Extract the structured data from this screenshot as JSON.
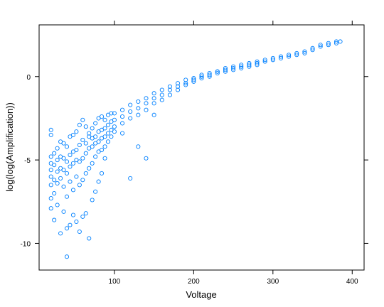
{
  "chart_data": {
    "type": "scatter",
    "title": "",
    "xlabel": "Voltage",
    "ylabel": "log(log(Amplification))",
    "xlim": [
      5,
      415
    ],
    "ylim": [
      -11.6,
      3.1
    ],
    "x_ticks": [
      {
        "value": 100,
        "label": "100"
      },
      {
        "value": 200,
        "label": "200"
      },
      {
        "value": 300,
        "label": "300"
      },
      {
        "value": 400,
        "label": "400"
      }
    ],
    "y_ticks": [
      {
        "value": 0,
        "label": "0"
      },
      {
        "value": -5,
        "label": "-5"
      },
      {
        "value": -10,
        "label": "-10"
      }
    ],
    "grid": false,
    "legend": "none",
    "marker_color": "#0080ff",
    "series": [
      {
        "values": [
          [
            20,
            -3.2
          ],
          [
            20,
            -3.5
          ],
          [
            20,
            -4.8
          ],
          [
            20,
            -5.2
          ],
          [
            20,
            -5.6
          ],
          [
            20,
            -6.0
          ],
          [
            20,
            -6.5
          ],
          [
            20,
            -7.3
          ],
          [
            20,
            -7.9
          ],
          [
            24,
            -4.6
          ],
          [
            24,
            -5.3
          ],
          [
            24,
            -6.2
          ],
          [
            24,
            -7.0
          ],
          [
            24,
            -8.6
          ],
          [
            28,
            -4.3
          ],
          [
            28,
            -5.0
          ],
          [
            28,
            -5.7
          ],
          [
            28,
            -6.4
          ],
          [
            28,
            -7.7
          ],
          [
            32,
            -3.9
          ],
          [
            32,
            -4.8
          ],
          [
            32,
            -5.5
          ],
          [
            32,
            -6.1
          ],
          [
            32,
            -9.4
          ],
          [
            36,
            -4.0
          ],
          [
            36,
            -4.9
          ],
          [
            36,
            -5.6
          ],
          [
            36,
            -6.6
          ],
          [
            36,
            -8.1
          ],
          [
            40,
            -4.2
          ],
          [
            40,
            -5.1
          ],
          [
            40,
            -5.8
          ],
          [
            40,
            -7.2
          ],
          [
            40,
            -9.1
          ],
          [
            40,
            -10.8
          ],
          [
            44,
            -3.6
          ],
          [
            44,
            -4.7
          ],
          [
            44,
            -5.4
          ],
          [
            44,
            -6.3
          ],
          [
            44,
            -8.9
          ],
          [
            48,
            -3.5
          ],
          [
            48,
            -4.5
          ],
          [
            48,
            -5.2
          ],
          [
            48,
            -6.8
          ],
          [
            48,
            -8.3
          ],
          [
            52,
            -3.3
          ],
          [
            52,
            -4.4
          ],
          [
            52,
            -5.0
          ],
          [
            52,
            -6.0
          ],
          [
            52,
            -8.7
          ],
          [
            56,
            -2.9
          ],
          [
            56,
            -4.1
          ],
          [
            56,
            -5.1
          ],
          [
            56,
            -6.5
          ],
          [
            56,
            -9.3
          ],
          [
            60,
            -2.6
          ],
          [
            60,
            -3.8
          ],
          [
            60,
            -4.9
          ],
          [
            60,
            -6.2
          ],
          [
            60,
            -8.4
          ],
          [
            64,
            -3.0
          ],
          [
            64,
            -4.0
          ],
          [
            64,
            -4.6
          ],
          [
            64,
            -5.8
          ],
          [
            64,
            -8.2
          ],
          [
            68,
            -3.4
          ],
          [
            68,
            -3.6
          ],
          [
            68,
            -4.3
          ],
          [
            68,
            -5.5
          ],
          [
            68,
            -9.7
          ],
          [
            72,
            -3.1
          ],
          [
            72,
            -3.7
          ],
          [
            72,
            -4.2
          ],
          [
            72,
            -5.2
          ],
          [
            72,
            -7.4
          ],
          [
            76,
            -2.8
          ],
          [
            76,
            -3.6
          ],
          [
            76,
            -4.0
          ],
          [
            76,
            -4.8
          ],
          [
            76,
            -6.9
          ],
          [
            80,
            -2.5
          ],
          [
            80,
            -3.3
          ],
          [
            80,
            -3.9
          ],
          [
            80,
            -4.5
          ],
          [
            80,
            -6.3
          ],
          [
            84,
            -2.4
          ],
          [
            84,
            -3.2
          ],
          [
            84,
            -3.7
          ],
          [
            84,
            -4.4
          ],
          [
            84,
            -5.8
          ],
          [
            88,
            -2.6
          ],
          [
            88,
            -3.1
          ],
          [
            88,
            -3.6
          ],
          [
            88,
            -4.2
          ],
          [
            88,
            -4.9
          ],
          [
            92,
            -2.3
          ],
          [
            92,
            -2.9
          ],
          [
            92,
            -3.4
          ],
          [
            92,
            -3.9
          ],
          [
            96,
            -2.2
          ],
          [
            96,
            -2.7
          ],
          [
            96,
            -3.2
          ],
          [
            96,
            -3.6
          ],
          [
            100,
            -2.2
          ],
          [
            100,
            -2.6
          ],
          [
            100,
            -3.0
          ],
          [
            100,
            -3.3
          ],
          [
            110,
            -2.0
          ],
          [
            110,
            -2.4
          ],
          [
            110,
            -2.8
          ],
          [
            110,
            -3.4
          ],
          [
            120,
            -1.7
          ],
          [
            120,
            -2.1
          ],
          [
            120,
            -2.5
          ],
          [
            120,
            -6.1
          ],
          [
            130,
            -1.5
          ],
          [
            130,
            -1.9
          ],
          [
            130,
            -2.3
          ],
          [
            130,
            -4.2
          ],
          [
            140,
            -1.3
          ],
          [
            140,
            -1.6
          ],
          [
            140,
            -2.0
          ],
          [
            140,
            -4.9
          ],
          [
            150,
            -1.0
          ],
          [
            150,
            -1.3
          ],
          [
            150,
            -1.6
          ],
          [
            150,
            -2.3
          ],
          [
            160,
            -0.8
          ],
          [
            160,
            -1.1
          ],
          [
            160,
            -1.4
          ],
          [
            170,
            -0.6
          ],
          [
            170,
            -0.8
          ],
          [
            170,
            -1.1
          ],
          [
            180,
            -0.4
          ],
          [
            180,
            -0.6
          ],
          [
            180,
            -0.8
          ],
          [
            190,
            -0.2
          ],
          [
            190,
            -0.4
          ],
          [
            190,
            -0.5
          ],
          [
            200,
            -0.1
          ],
          [
            200,
            -0.2
          ],
          [
            200,
            -0.3
          ],
          [
            210,
            0.1
          ],
          [
            210,
            0.0
          ],
          [
            210,
            -0.1
          ],
          [
            220,
            0.2
          ],
          [
            220,
            0.1
          ],
          [
            220,
            0.0
          ],
          [
            230,
            0.3
          ],
          [
            230,
            0.3
          ],
          [
            230,
            0.2
          ],
          [
            240,
            0.5
          ],
          [
            240,
            0.4
          ],
          [
            240,
            0.3
          ],
          [
            250,
            0.6
          ],
          [
            250,
            0.5
          ],
          [
            250,
            0.4
          ],
          [
            260,
            0.7
          ],
          [
            260,
            0.6
          ],
          [
            260,
            0.5
          ],
          [
            270,
            0.8
          ],
          [
            270,
            0.7
          ],
          [
            270,
            0.6
          ],
          [
            280,
            0.9
          ],
          [
            280,
            0.8
          ],
          [
            280,
            0.7
          ],
          [
            290,
            1.0
          ],
          [
            290,
            0.9
          ],
          [
            300,
            1.1
          ],
          [
            300,
            1.0
          ],
          [
            310,
            1.2
          ],
          [
            310,
            1.1
          ],
          [
            320,
            1.3
          ],
          [
            320,
            1.2
          ],
          [
            330,
            1.4
          ],
          [
            330,
            1.3
          ],
          [
            340,
            1.5
          ],
          [
            340,
            1.4
          ],
          [
            350,
            1.7
          ],
          [
            350,
            1.6
          ],
          [
            360,
            1.9
          ],
          [
            360,
            1.8
          ],
          [
            370,
            2.0
          ],
          [
            370,
            1.9
          ],
          [
            380,
            2.1
          ],
          [
            380,
            2.0
          ],
          [
            385,
            2.1
          ]
        ]
      }
    ]
  }
}
